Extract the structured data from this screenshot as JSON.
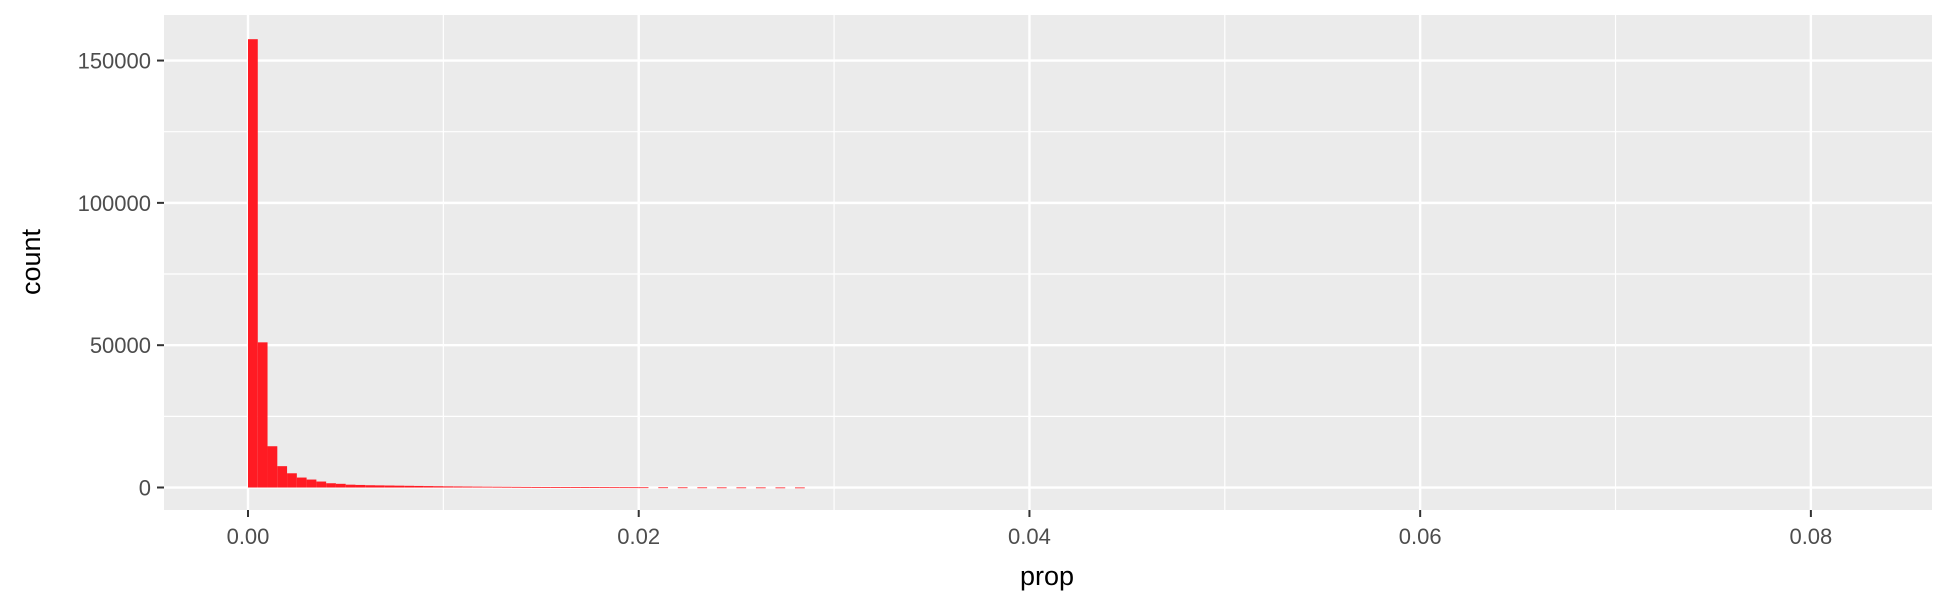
{
  "chart_data": {
    "type": "bar",
    "subtype": "histogram",
    "xlabel": "prop",
    "ylabel": "count",
    "xlim": [
      -0.0043,
      0.0862
    ],
    "ylim": [
      -7900,
      166000
    ],
    "x_ticks": [
      0.0,
      0.02,
      0.04,
      0.06,
      0.08
    ],
    "x_tick_labels": [
      "0.00",
      "0.02",
      "0.04",
      "0.06",
      "0.08"
    ],
    "y_ticks": [
      0,
      50000,
      100000,
      150000
    ],
    "y_tick_labels": [
      "0",
      "50000",
      "100000",
      "150000"
    ],
    "grid": true,
    "colors": {
      "bar": "#ff1b23",
      "panel": "#ebebeb",
      "grid": "#ffffff",
      "axis_text": "#4d4d4d",
      "title_text": "#000000"
    },
    "bin_width": 0.0005,
    "bins_start": [
      0.0,
      0.0005,
      0.001,
      0.0015,
      0.002,
      0.0025,
      0.003,
      0.0035,
      0.004,
      0.0045,
      0.005,
      0.0055,
      0.006,
      0.0065,
      0.007,
      0.0075,
      0.008,
      0.0085,
      0.009,
      0.0095,
      0.01,
      0.0105,
      0.011,
      0.0115,
      0.012,
      0.0125,
      0.013,
      0.0135,
      0.014,
      0.0145,
      0.015,
      0.0155,
      0.016,
      0.0165,
      0.017,
      0.0175,
      0.018,
      0.0185,
      0.019,
      0.0195,
      0.02,
      0.021,
      0.022,
      0.023,
      0.024,
      0.025,
      0.026,
      0.027,
      0.028
    ],
    "values": [
      157500,
      51000,
      14500,
      7500,
      5000,
      3500,
      2800,
      2100,
      1500,
      1300,
      1000,
      900,
      800,
      750,
      700,
      650,
      600,
      550,
      500,
      450,
      400,
      370,
      340,
      310,
      280,
      260,
      240,
      220,
      200,
      185,
      170,
      155,
      140,
      130,
      120,
      110,
      100,
      90,
      85,
      80,
      70,
      60,
      50,
      40,
      35,
      30,
      25,
      20,
      15
    ]
  }
}
